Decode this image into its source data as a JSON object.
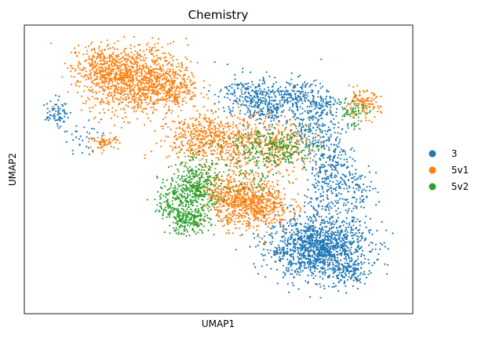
{
  "chart_data": {
    "type": "scatter",
    "title": "Chemistry",
    "xlabel": "UMAP1",
    "ylabel": "UMAP2",
    "xticks": false,
    "yticks": false,
    "grid": false,
    "legend_placement": "right",
    "series": [
      {
        "name": "3",
        "color": "#1f77b4",
        "clusters": [
          {
            "cx": 0.78,
            "cy": 0.21,
            "sx": 0.07,
            "sy": 0.055,
            "n": 1300
          },
          {
            "cx": 0.86,
            "cy": 0.11,
            "sx": 0.03,
            "sy": 0.03,
            "n": 120
          },
          {
            "cx": 0.81,
            "cy": 0.5,
            "sx": 0.035,
            "sy": 0.1,
            "n": 380
          },
          {
            "cx": 0.88,
            "cy": 0.42,
            "sx": 0.03,
            "sy": 0.04,
            "n": 90
          },
          {
            "cx": 0.6,
            "cy": 0.77,
            "sx": 0.045,
            "sy": 0.04,
            "n": 280
          },
          {
            "cx": 0.66,
            "cy": 0.72,
            "sx": 0.035,
            "sy": 0.03,
            "n": 120
          },
          {
            "cx": 0.72,
            "cy": 0.78,
            "sx": 0.035,
            "sy": 0.03,
            "n": 130
          },
          {
            "cx": 0.79,
            "cy": 0.73,
            "sx": 0.03,
            "sy": 0.03,
            "n": 110
          },
          {
            "cx": 0.74,
            "cy": 0.64,
            "sx": 0.03,
            "sy": 0.04,
            "n": 90
          },
          {
            "cx": 0.06,
            "cy": 0.71,
            "sx": 0.015,
            "sy": 0.025,
            "n": 70
          },
          {
            "cx": 0.12,
            "cy": 0.62,
            "sx": 0.03,
            "sy": 0.03,
            "n": 35
          }
        ]
      },
      {
        "name": "5v1",
        "color": "#ff7f0e",
        "clusters": [
          {
            "cx": 0.28,
            "cy": 0.83,
            "sx": 0.07,
            "sy": 0.065,
            "n": 1050
          },
          {
            "cx": 0.18,
            "cy": 0.88,
            "sx": 0.04,
            "sy": 0.04,
            "n": 250
          },
          {
            "cx": 0.38,
            "cy": 0.8,
            "sx": 0.035,
            "sy": 0.04,
            "n": 180
          },
          {
            "cx": 0.6,
            "cy": 0.37,
            "sx": 0.05,
            "sy": 0.045,
            "n": 650
          },
          {
            "cx": 0.52,
            "cy": 0.41,
            "sx": 0.035,
            "sy": 0.04,
            "n": 220
          },
          {
            "cx": 0.55,
            "cy": 0.6,
            "sx": 0.09,
            "sy": 0.05,
            "n": 550
          },
          {
            "cx": 0.45,
            "cy": 0.63,
            "sx": 0.05,
            "sy": 0.04,
            "n": 200
          },
          {
            "cx": 0.9,
            "cy": 0.74,
            "sx": 0.025,
            "sy": 0.025,
            "n": 120
          },
          {
            "cx": 0.19,
            "cy": 0.6,
            "sx": 0.02,
            "sy": 0.012,
            "n": 60
          },
          {
            "cx": 0.68,
            "cy": 0.58,
            "sx": 0.05,
            "sy": 0.05,
            "n": 130
          }
        ]
      },
      {
        "name": "5v2",
        "color": "#2ca02c",
        "clusters": [
          {
            "cx": 0.44,
            "cy": 0.43,
            "sx": 0.035,
            "sy": 0.05,
            "n": 420
          },
          {
            "cx": 0.42,
            "cy": 0.31,
            "sx": 0.03,
            "sy": 0.025,
            "n": 220
          },
          {
            "cx": 0.37,
            "cy": 0.38,
            "sx": 0.02,
            "sy": 0.03,
            "n": 80
          },
          {
            "cx": 0.65,
            "cy": 0.58,
            "sx": 0.07,
            "sy": 0.035,
            "n": 300
          },
          {
            "cx": 0.87,
            "cy": 0.72,
            "sx": 0.02,
            "sy": 0.035,
            "n": 60
          },
          {
            "cx": 0.58,
            "cy": 0.45,
            "sx": 0.05,
            "sy": 0.04,
            "n": 50
          }
        ]
      }
    ]
  }
}
